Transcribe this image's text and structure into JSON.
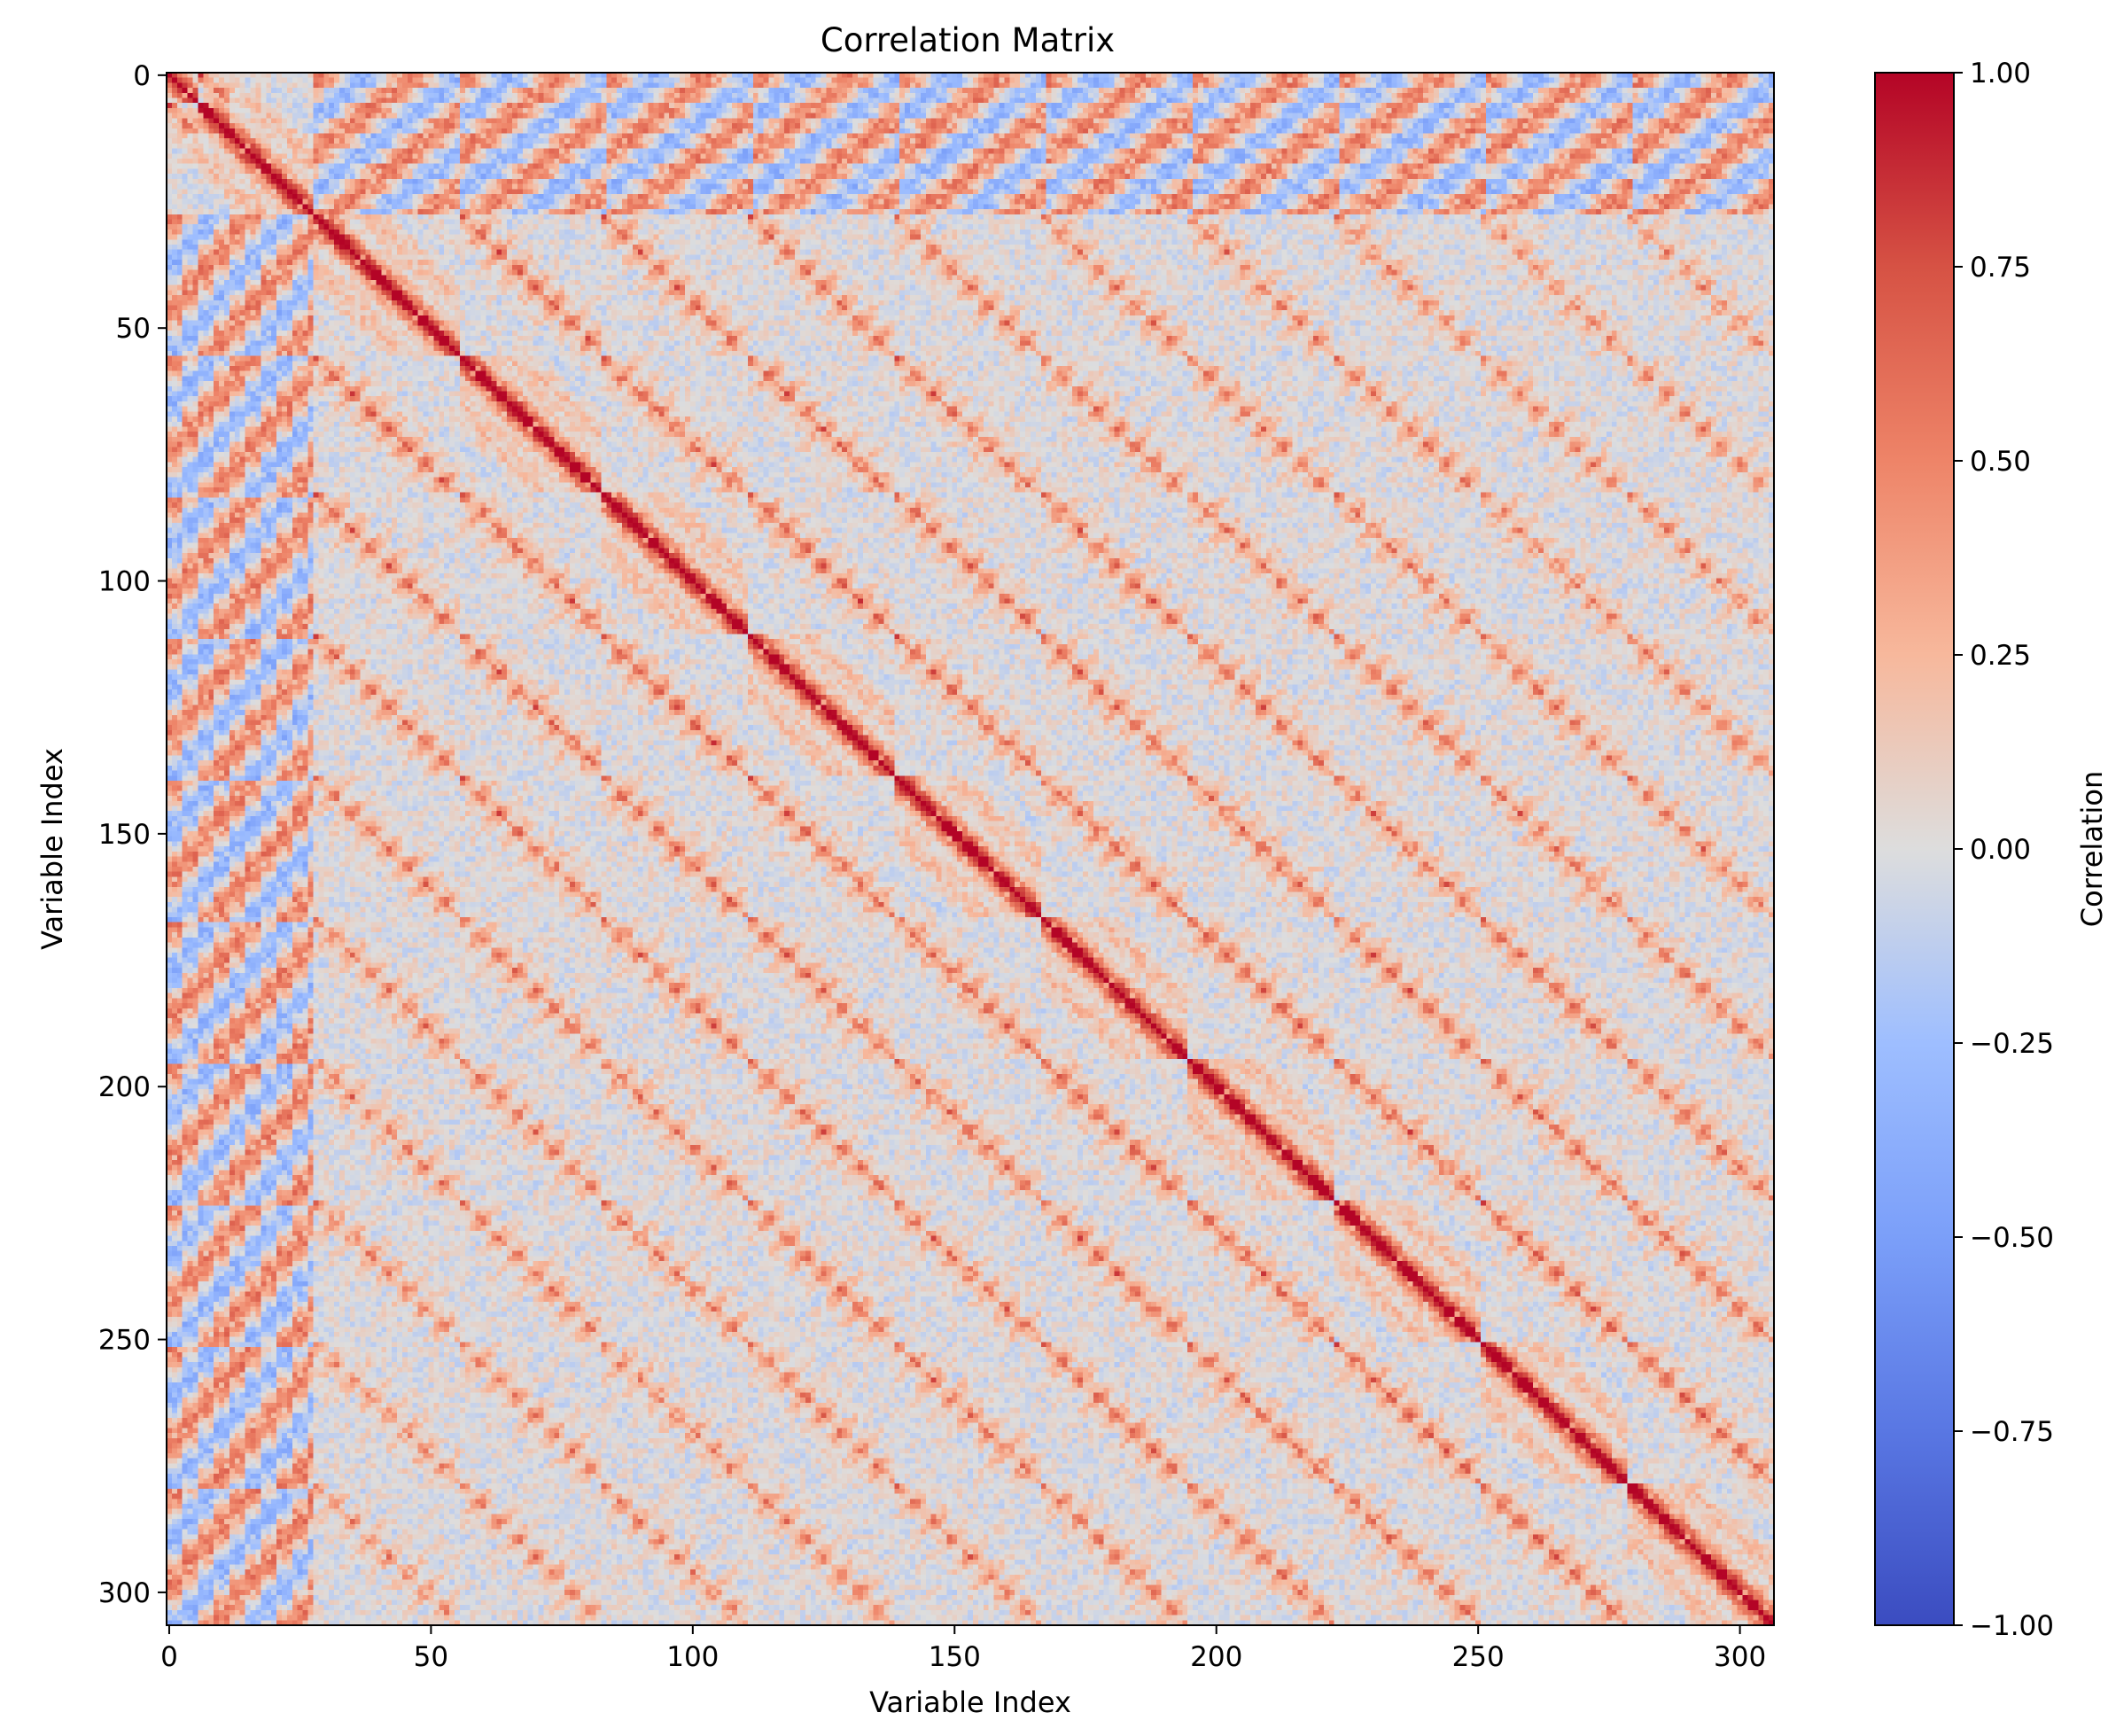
{
  "chart_data": {
    "type": "heatmap",
    "title": "Correlation Matrix",
    "xlabel": "Variable Index",
    "ylabel": "Variable Index",
    "size": 307,
    "xlim": [
      0,
      307
    ],
    "ylim": [
      307,
      0
    ],
    "x_ticks": [
      0,
      50,
      100,
      150,
      200,
      250,
      300
    ],
    "y_ticks": [
      0,
      50,
      100,
      150,
      200,
      250,
      300
    ],
    "diagonal_value": 1.0,
    "block_boundaries": [
      0,
      6,
      28,
      56,
      83,
      111,
      139,
      167,
      195,
      223,
      251,
      279,
      307
    ],
    "colorbar": {
      "label": "Correlation",
      "colormap": "coolwarm",
      "vmin": -1.0,
      "vmax": 1.0,
      "ticks": [
        1.0,
        0.75,
        0.5,
        0.25,
        0.0,
        -0.25,
        -0.5,
        -0.75,
        -1.0
      ],
      "tick_labels": [
        "1.00",
        "0.75",
        "0.50",
        "0.25",
        "0.00",
        "−0.25",
        "−0.50",
        "−0.75",
        "−1.00"
      ]
    },
    "colors": {
      "negative_end": "#3b4cc0",
      "neutral": "#dddddd",
      "positive_end": "#b40426"
    },
    "grid": false
  }
}
